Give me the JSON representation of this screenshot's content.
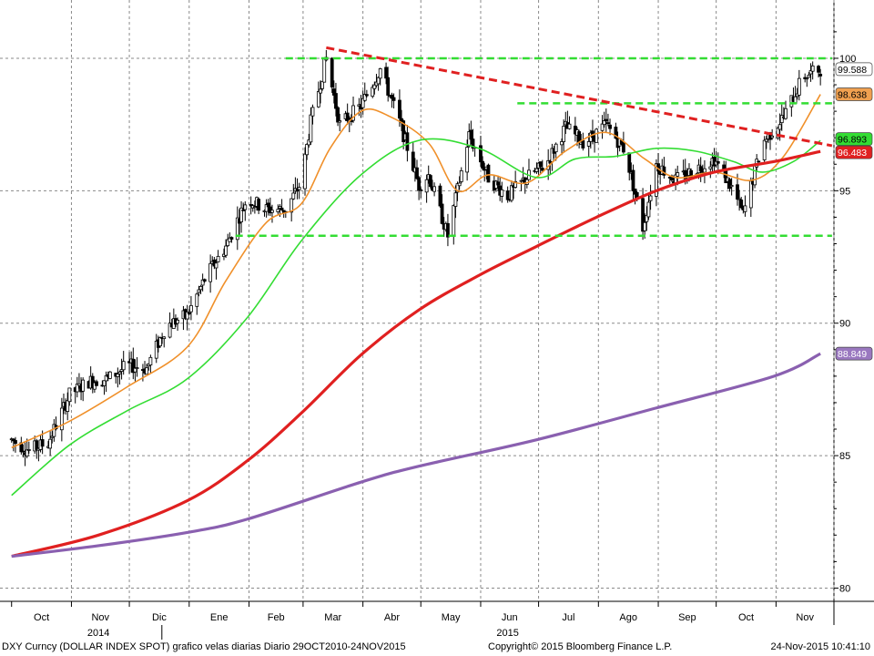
{
  "chart_data": {
    "type": "candlestick",
    "ylim": [
      79.5,
      102.2
    ],
    "yticks": [
      80,
      85,
      90,
      95,
      100
    ],
    "grid": true,
    "x_months": [
      {
        "label": "Oct",
        "year": "2014"
      },
      {
        "label": "Nov",
        "year": "2014"
      },
      {
        "label": "Dic",
        "year": "2014"
      },
      {
        "label": "Ene",
        "year": "2015"
      },
      {
        "label": "Feb",
        "year": "2015"
      },
      {
        "label": "Mar",
        "year": "2015"
      },
      {
        "label": "Abr",
        "year": "2015"
      },
      {
        "label": "May",
        "year": "2015"
      },
      {
        "label": "Jun",
        "year": "2015"
      },
      {
        "label": "Jul",
        "year": "2015"
      },
      {
        "label": "Ago",
        "year": "2015"
      },
      {
        "label": "Sep",
        "year": "2015"
      },
      {
        "label": "Oct",
        "year": "2015"
      },
      {
        "label": "Nov",
        "year": "2015"
      }
    ],
    "year_labels": [
      "2014",
      "2015"
    ],
    "price_series": {
      "name": "DXY",
      "close_path": [
        [
          "2014-10-01",
          85.6
        ],
        [
          "2014-10-10",
          85.2
        ],
        [
          "2014-10-20",
          85.5
        ],
        [
          "2014-10-31",
          87.3
        ],
        [
          "2014-11-10",
          87.8
        ],
        [
          "2014-11-20",
          87.9
        ],
        [
          "2014-11-30",
          88.4
        ],
        [
          "2014-12-10",
          88.3
        ],
        [
          "2014-12-20",
          89.9
        ],
        [
          "2014-12-31",
          90.3
        ],
        [
          "2015-01-10",
          91.8
        ],
        [
          "2015-01-20",
          92.9
        ],
        [
          "2015-01-31",
          94.7
        ],
        [
          "2015-02-10",
          94.3
        ],
        [
          "2015-02-20",
          94.3
        ],
        [
          "2015-02-28",
          95.3
        ],
        [
          "2015-03-05",
          97.6
        ],
        [
          "2015-03-13",
          100.0
        ],
        [
          "2015-03-20",
          97.5
        ],
        [
          "2015-03-31",
          98.2
        ],
        [
          "2015-04-10",
          99.6
        ],
        [
          "2015-04-20",
          97.6
        ],
        [
          "2015-04-30",
          95.2
        ],
        [
          "2015-05-05",
          95.6
        ],
        [
          "2015-05-15",
          93.3
        ],
        [
          "2015-05-26",
          97.1
        ],
        [
          "2015-06-05",
          95.5
        ],
        [
          "2015-06-15",
          94.8
        ],
        [
          "2015-06-25",
          95.5
        ],
        [
          "2015-07-05",
          96.0
        ],
        [
          "2015-07-15",
          97.4
        ],
        [
          "2015-07-25",
          96.8
        ],
        [
          "2015-08-05",
          97.5
        ],
        [
          "2015-08-15",
          96.5
        ],
        [
          "2015-08-24",
          93.6
        ],
        [
          "2015-08-31",
          96.0
        ],
        [
          "2015-09-10",
          95.4
        ],
        [
          "2015-09-20",
          95.8
        ],
        [
          "2015-09-30",
          96.2
        ],
        [
          "2015-10-10",
          95.0
        ],
        [
          "2015-10-15",
          94.1
        ],
        [
          "2015-10-25",
          96.8
        ],
        [
          "2015-11-05",
          97.8
        ],
        [
          "2015-11-15",
          99.3
        ],
        [
          "2015-11-24",
          99.59
        ]
      ],
      "last_value": "99.588",
      "color": "#000000"
    },
    "moving_averages": [
      {
        "value_label": "98.638",
        "color": "#f0902a",
        "points": [
          [
            "2014-10-01",
            85.3
          ],
          [
            "2014-10-31",
            86.3
          ],
          [
            "2014-11-30",
            87.6
          ],
          [
            "2014-12-31",
            89.1
          ],
          [
            "2015-01-20",
            91.6
          ],
          [
            "2015-02-10",
            93.8
          ],
          [
            "2015-02-28",
            94.5
          ],
          [
            "2015-03-15",
            96.6
          ],
          [
            "2015-03-31",
            98.0
          ],
          [
            "2015-04-15",
            97.8
          ],
          [
            "2015-05-05",
            96.8
          ],
          [
            "2015-05-20",
            95.0
          ],
          [
            "2015-06-05",
            95.6
          ],
          [
            "2015-06-25",
            95.3
          ],
          [
            "2015-07-15",
            96.5
          ],
          [
            "2015-08-05",
            97.2
          ],
          [
            "2015-08-25",
            96.2
          ],
          [
            "2015-09-10",
            95.5
          ],
          [
            "2015-09-30",
            95.7
          ],
          [
            "2015-10-20",
            95.4
          ],
          [
            "2015-11-05",
            96.3
          ],
          [
            "2015-11-24",
            98.638
          ]
        ]
      },
      {
        "value_label": "96.893",
        "color": "#33dd33",
        "points": [
          [
            "2014-10-01",
            83.5
          ],
          [
            "2014-10-31",
            85.4
          ],
          [
            "2014-11-30",
            86.7
          ],
          [
            "2014-12-31",
            87.9
          ],
          [
            "2015-01-31",
            90.2
          ],
          [
            "2015-02-28",
            93.1
          ],
          [
            "2015-03-31",
            95.6
          ],
          [
            "2015-04-30",
            96.9
          ],
          [
            "2015-05-31",
            96.6
          ],
          [
            "2015-06-30",
            95.5
          ],
          [
            "2015-07-20",
            96.2
          ],
          [
            "2015-08-10",
            96.3
          ],
          [
            "2015-08-31",
            96.6
          ],
          [
            "2015-09-20",
            96.5
          ],
          [
            "2015-10-10",
            96.1
          ],
          [
            "2015-10-25",
            95.7
          ],
          [
            "2015-11-10",
            96.1
          ],
          [
            "2015-11-24",
            96.893
          ]
        ]
      },
      {
        "value_label": "96.483",
        "color": "#e02020",
        "points": [
          [
            "2014-10-01",
            81.2
          ],
          [
            "2014-11-15",
            82.0
          ],
          [
            "2014-12-31",
            83.3
          ],
          [
            "2015-01-31",
            84.8
          ],
          [
            "2015-02-28",
            86.6
          ],
          [
            "2015-03-31",
            88.8
          ],
          [
            "2015-04-30",
            90.5
          ],
          [
            "2015-05-31",
            91.8
          ],
          [
            "2015-06-30",
            92.9
          ],
          [
            "2015-07-31",
            94.0
          ],
          [
            "2015-08-31",
            95.0
          ],
          [
            "2015-09-30",
            95.7
          ],
          [
            "2015-10-31",
            96.1
          ],
          [
            "2015-11-24",
            96.483
          ]
        ]
      },
      {
        "value_label": "88.849",
        "color": "#8a60b0",
        "points": [
          [
            "2014-10-01",
            81.2
          ],
          [
            "2014-11-15",
            81.6
          ],
          [
            "2014-12-31",
            82.1
          ],
          [
            "2015-01-31",
            82.6
          ],
          [
            "2015-03-31",
            84.0
          ],
          [
            "2015-04-30",
            84.6
          ],
          [
            "2015-06-30",
            85.6
          ],
          [
            "2015-08-31",
            86.8
          ],
          [
            "2015-10-31",
            88.0
          ],
          [
            "2015-11-24",
            88.849
          ]
        ]
      }
    ],
    "trendlines": [
      {
        "kind": "horizontal",
        "color": "#33dd33",
        "y": 100.0,
        "from": "2015-02-20",
        "to": "2015-11-30"
      },
      {
        "kind": "horizontal",
        "color": "#33dd33",
        "y": 98.3,
        "from": "2015-06-20",
        "to": "2015-11-30"
      },
      {
        "kind": "horizontal",
        "color": "#33dd33",
        "y": 93.3,
        "from": "2015-01-25",
        "to": "2015-11-30"
      },
      {
        "kind": "diagonal",
        "color": "#e02020",
        "from": [
          "2015-03-13",
          100.4
        ],
        "to": [
          "2015-11-30",
          96.7
        ]
      }
    ]
  },
  "footer": {
    "left": "DXY Curncy (DOLLAR INDEX SPOT) grafico velas diarias  Diario 29OCT2010-24NOV2015",
    "center": "Copyright© 2015 Bloomberg Finance L.P.",
    "right": "24-Nov-2015  10:41:10"
  }
}
